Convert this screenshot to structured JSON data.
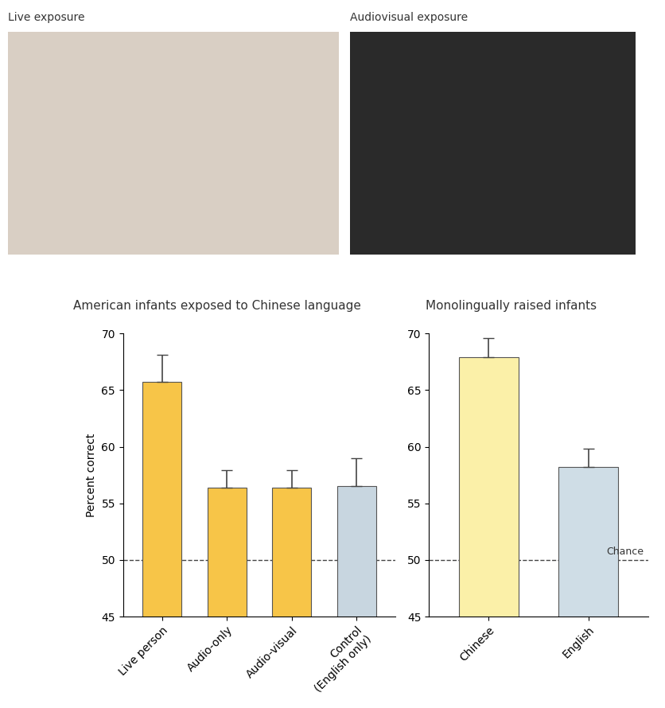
{
  "images": [
    {
      "title": "Live exposure"
    },
    {
      "title": "Audiovisual exposure"
    }
  ],
  "chart_data": [
    {
      "type": "bar",
      "title": "American infants exposed to Chinese language",
      "y_label": "Percent correct",
      "categories": [
        "Live person",
        "Audio-only",
        "Audio-visual",
        "Control\n(English only)"
      ],
      "values": [
        65.7,
        56.4,
        56.4,
        56.5
      ],
      "error": [
        2.4,
        1.5,
        1.5,
        2.5
      ],
      "colors": [
        "#f7c548",
        "#f7c548",
        "#f7c548",
        "#c8d6e0"
      ],
      "reference_line": {
        "value": 50
      },
      "ylim": [
        45,
        70
      ],
      "yticks": [
        45,
        50,
        55,
        60,
        65,
        70
      ]
    },
    {
      "type": "bar",
      "title": "Monolingually raised infants",
      "categories": [
        "Chinese",
        "English"
      ],
      "values": [
        67.9,
        58.2
      ],
      "error": [
        1.7,
        1.6
      ],
      "colors": [
        "#fbf0a8",
        "#cfdde6"
      ],
      "reference_line": {
        "value": 50,
        "label": "Chance"
      },
      "ylim": [
        45,
        70
      ],
      "yticks": [
        45,
        50,
        55,
        60,
        65,
        70
      ]
    }
  ]
}
